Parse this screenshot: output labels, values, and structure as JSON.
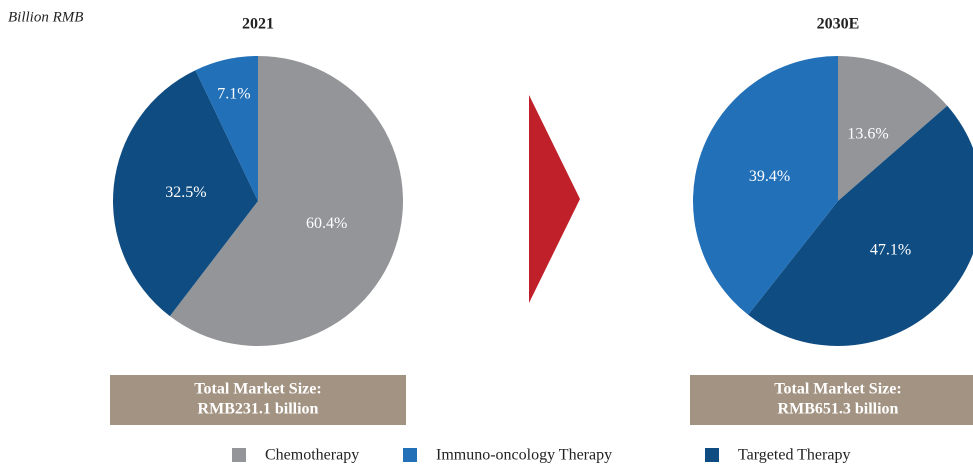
{
  "unit": "Billion RMB",
  "legend": [
    {
      "name": "Chemotherapy",
      "color": "#939598"
    },
    {
      "name": "Immuno-oncology Therapy",
      "color": "#2270b8"
    },
    {
      "name": "Targeted Therapy",
      "color": "#0f4c81"
    }
  ],
  "chart_data": [
    {
      "type": "pie",
      "title": "2021",
      "categories": [
        "Chemotherapy",
        "Targeted Therapy",
        "Immuno-oncology Therapy"
      ],
      "values": [
        60.4,
        32.5,
        7.1
      ],
      "value_labels": [
        "60.4%",
        "32.5%",
        "7.1%"
      ],
      "annotation": [
        "Total Market Size:",
        "RMB231.1 billion"
      ]
    },
    {
      "type": "pie",
      "title": "2030E",
      "categories": [
        "Chemotherapy",
        "Targeted Therapy",
        "Immuno-oncology Therapy"
      ],
      "values": [
        13.6,
        47.1,
        39.4
      ],
      "value_labels": [
        "13.6%",
        "47.1%",
        "39.4%"
      ],
      "annotation": [
        "Total Market Size:",
        "RMB651.3 billion"
      ]
    }
  ]
}
